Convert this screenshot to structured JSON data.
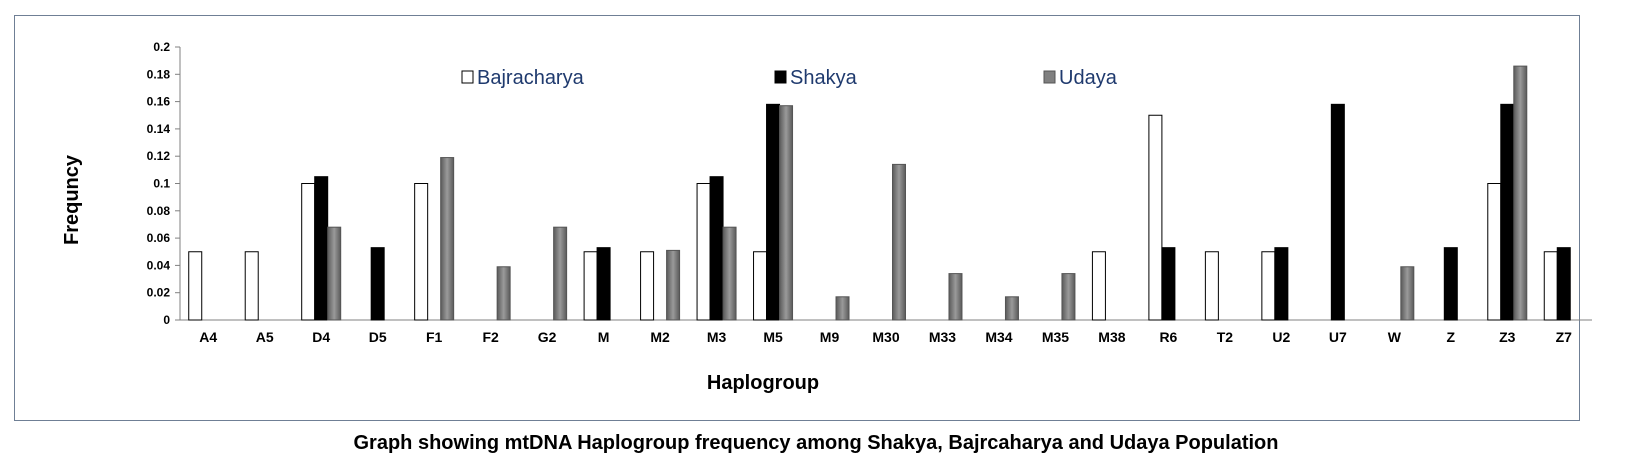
{
  "caption": "Graph showing mtDNA Haplogroup frequency among Shakya,  Bajrcaharya  and Udaya Population",
  "chart_data": {
    "type": "bar",
    "title": "",
    "xlabel": "Haplogroup",
    "ylabel": "Frequncy",
    "ylim": [
      0,
      0.2
    ],
    "yticks": [
      "0",
      "0.02",
      "0.04",
      "0.06",
      "0.08",
      "0.1",
      "0.12",
      "0.14",
      "0.16",
      "0.18",
      "0.2"
    ],
    "legend_position": "top",
    "categories": [
      "A4",
      "A5",
      "D4",
      "D5",
      "F1",
      "F2",
      "G2",
      "M",
      "M2",
      "M3",
      "M5",
      "M9",
      "M30",
      "M33",
      "M34",
      "M35",
      "M38",
      "R6",
      "T2",
      "U2",
      "U7",
      "W",
      "Z",
      "Z3",
      "Z7"
    ],
    "series": [
      {
        "name": "Bajracharya",
        "color": "#ffffff",
        "values": [
          0.05,
          0.05,
          0.1,
          0,
          0.1,
          0,
          0,
          0.05,
          0.05,
          0.1,
          0.05,
          0,
          0,
          0,
          0,
          0,
          0.05,
          0.15,
          0.05,
          0.05,
          0,
          0,
          0,
          0.1,
          0.05
        ]
      },
      {
        "name": "Shakya",
        "color": "#000000",
        "values": [
          0,
          0,
          0.105,
          0.053,
          0,
          0,
          0,
          0.053,
          0,
          0.105,
          0.158,
          0,
          0,
          0,
          0,
          0,
          0,
          0.053,
          0,
          0.053,
          0.158,
          0,
          0.053,
          0.158,
          0.053
        ]
      },
      {
        "name": "Udaya",
        "color": "#808080",
        "values": [
          0,
          0,
          0.068,
          0,
          0.119,
          0.039,
          0.068,
          0,
          0.051,
          0.068,
          0.157,
          0.017,
          0.114,
          0.034,
          0.017,
          0.034,
          0,
          0,
          0,
          0,
          0,
          0.039,
          0,
          0.186,
          0
        ]
      }
    ]
  }
}
